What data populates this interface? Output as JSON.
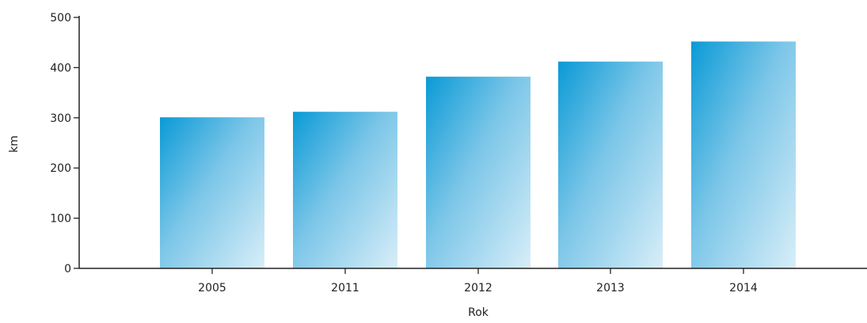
{
  "colors": {
    "bar_top": "#0a9ad6",
    "bar_bottom": "#d8eef8",
    "axis": "#222222"
  },
  "chart_data": {
    "type": "bar",
    "categories": [
      "2005",
      "2011",
      "2012",
      "2013",
      "2014"
    ],
    "values": [
      301,
      312,
      382,
      412,
      452
    ],
    "xlabel": "Rok",
    "ylabel": "km",
    "ylim": [
      0,
      500
    ],
    "yticks": [
      0,
      100,
      200,
      300,
      400,
      500
    ],
    "grid": false,
    "legend": "none"
  }
}
